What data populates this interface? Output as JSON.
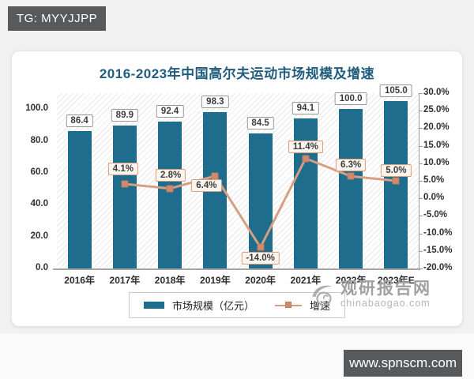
{
  "page": {
    "top_badge": "TG: MYYJJPP",
    "bottom_badge": "www.spnscm.com"
  },
  "watermark": {
    "name": "观研报告网",
    "domain": "chinabaogao.com"
  },
  "chart_data": {
    "type": "bar+line",
    "title": "2016-2023年中国高尔夫运动市场规模及增速",
    "categories": [
      "2016年",
      "2017年",
      "2018年",
      "2019年",
      "2020年",
      "2021年",
      "2022年",
      "2023年E"
    ],
    "series": [
      {
        "name": "市场规模（亿元）",
        "type": "bar",
        "axis": "left",
        "color": "#1e6d8d",
        "values": [
          86.4,
          89.9,
          92.4,
          98.3,
          84.5,
          94.1,
          100.0,
          105.0
        ],
        "labels": [
          "86.4",
          "89.9",
          "92.4",
          "98.3",
          "84.5",
          "94.1",
          "100.0",
          "105.0"
        ]
      },
      {
        "name": "增速",
        "type": "line",
        "axis": "right",
        "color": "#d79f82",
        "values": [
          null,
          4.1,
          2.8,
          6.4,
          -14.0,
          11.4,
          6.3,
          5.0
        ],
        "labels": [
          null,
          "4.1%",
          "2.8%",
          "6.4%",
          "-14.0%",
          "11.4%",
          "6.3%",
          "5.0%"
        ]
      }
    ],
    "left_axis": {
      "ticks": [
        "100.0",
        "80.0",
        "60.0",
        "40.0",
        "20.0",
        "0.0"
      ],
      "min": 0,
      "max": 110
    },
    "right_axis": {
      "ticks": [
        "30.0%",
        "25.0%",
        "20.0%",
        "15.0%",
        "10.0%",
        "5.0%",
        "0.0%",
        "-5.0%",
        "-10.0%",
        "-15.0%",
        "-20.0%"
      ],
      "min": -20,
      "max": 30
    },
    "layout": {
      "legend_position": "bottom-center",
      "grid": false,
      "hatch_background": true
    }
  }
}
